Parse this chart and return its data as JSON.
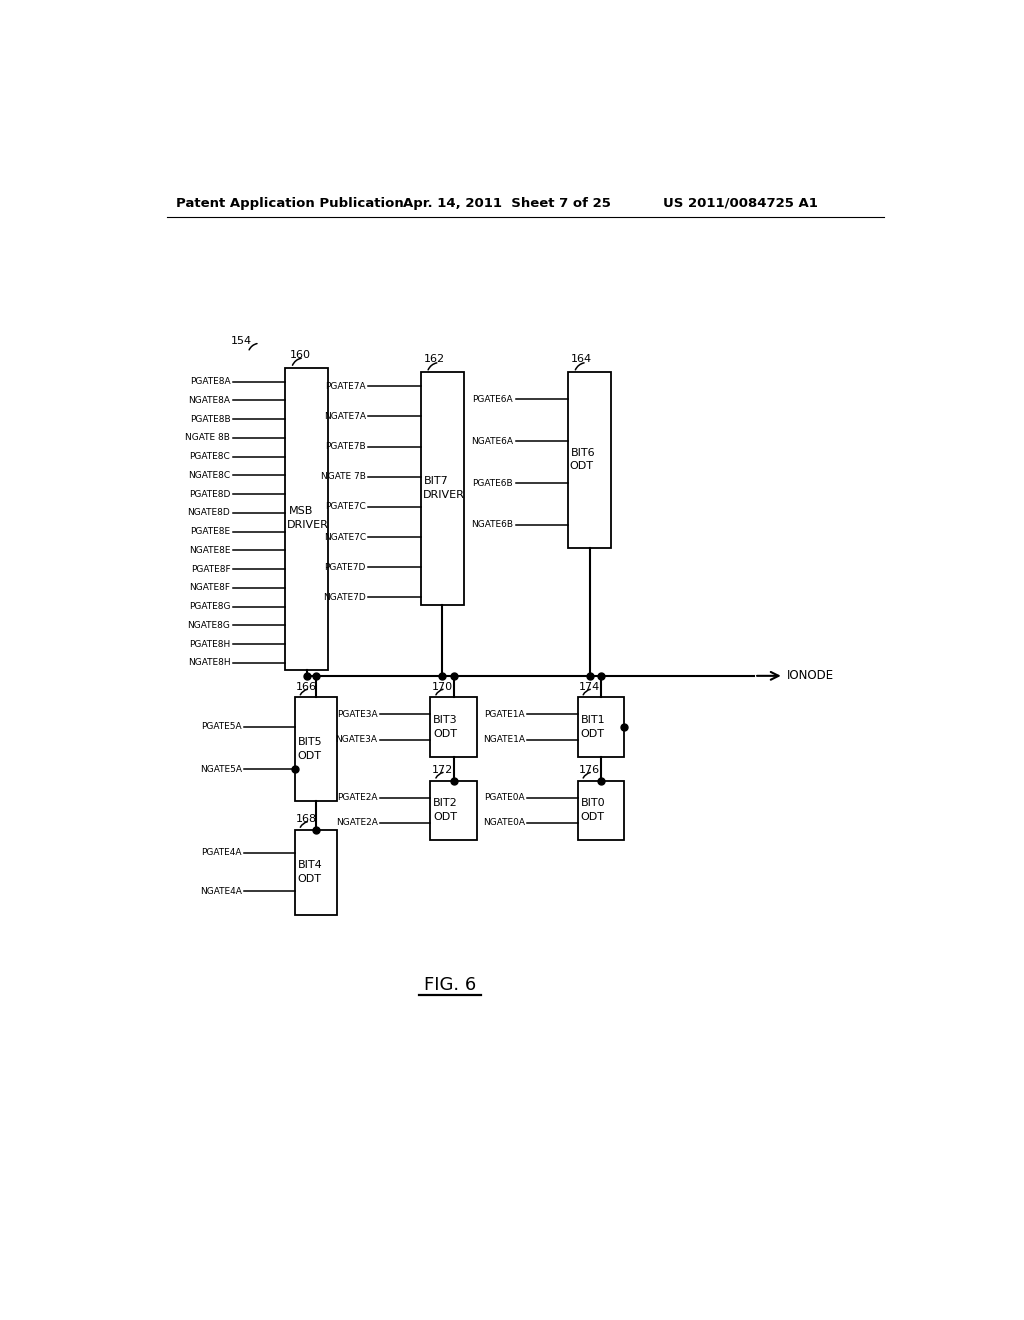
{
  "bg_color": "#ffffff",
  "header_left": "Patent Application Publication",
  "header_mid": "Apr. 14, 2011  Sheet 7 of 25",
  "header_right": "US 2011/0084725 A1",
  "fig_label": "FIG. 6",
  "label_154": "154",
  "label_160": "160",
  "label_162": "162",
  "label_164": "164",
  "label_166": "166",
  "label_168": "168",
  "label_170": "170",
  "label_172": "172",
  "label_174": "174",
  "label_176": "176",
  "box160_inputs": [
    "PGATE8A",
    "NGATE8A",
    "PGATE8B",
    "NGATE 8B",
    "PGATE8C",
    "NGATE8C",
    "PGATE8D",
    "NGATE8D",
    "PGATE8E",
    "NGATE8E",
    "PGATE8F",
    "NGATE8F",
    "PGATE8G",
    "NGATE8G",
    "PGATE8H",
    "NGATE8H"
  ],
  "box160_label1": "MSB",
  "box160_label2": "DRIVER",
  "box162_inputs": [
    "PGATE7A",
    "NGATE7A",
    "PGATE7B",
    "NGATE 7B",
    "PGATE7C",
    "NGATE7C",
    "PGATE7D",
    "NGATE7D"
  ],
  "box162_label1": "BIT7",
  "box162_label2": "DRIVER",
  "box164_inputs": [
    "PGATE6A",
    "NGATE6A",
    "PGATE6B",
    "NGATE6B"
  ],
  "box164_label1": "BIT6",
  "box164_label2": "ODT",
  "box166_inputs": [
    "PGATE5A",
    "NGATE5A"
  ],
  "box166_label1": "BIT5",
  "box166_label2": "ODT",
  "box168_inputs": [
    "PGATE4A",
    "NGATE4A"
  ],
  "box168_label1": "BIT4",
  "box168_label2": "ODT",
  "box170_inputs": [
    "PGATE3A",
    "NGATE3A"
  ],
  "box170_label1": "BIT3",
  "box170_label2": "ODT",
  "box172_inputs": [
    "PGATE2A",
    "NGATE2A"
  ],
  "box172_label1": "BIT2",
  "box172_label2": "ODT",
  "box174_inputs": [
    "PGATE1A",
    "NGATE1A"
  ],
  "box174_label1": "BIT1",
  "box174_label2": "ODT",
  "box176_inputs": [
    "PGATE0A",
    "NGATE0A"
  ],
  "box176_label1": "BIT0",
  "box176_label2": "ODT",
  "ionode_label": "IONODE"
}
